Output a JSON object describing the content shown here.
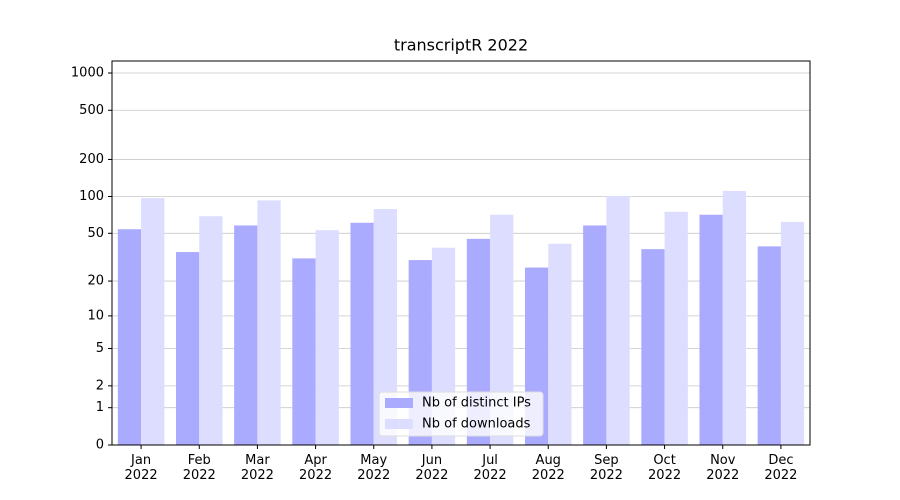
{
  "chart_data": {
    "type": "bar",
    "title": "transcriptR 2022",
    "scale": "log1p",
    "categories": [
      "Jan\n2022",
      "Feb\n2022",
      "Mar\n2022",
      "Apr\n2022",
      "May\n2022",
      "Jun\n2022",
      "Jul\n2022",
      "Aug\n2022",
      "Sep\n2022",
      "Oct\n2022",
      "Nov\n2022",
      "Dec\n2022"
    ],
    "series": [
      {
        "name": "Nb of distinct IPs",
        "color": "#aaaaff",
        "values": [
          54,
          35,
          58,
          31,
          61,
          30,
          45,
          26,
          58,
          37,
          71,
          39
        ]
      },
      {
        "name": "Nb of downloads",
        "color": "#ddddff",
        "values": [
          97,
          69,
          93,
          53,
          79,
          38,
          71,
          41,
          101,
          75,
          111,
          62
        ]
      }
    ],
    "ylim": [
      0,
      1250
    ],
    "yticks": [
      0,
      1,
      2,
      5,
      10,
      20,
      50,
      100,
      200,
      500,
      1000
    ],
    "grid": true,
    "legend": "lower center"
  }
}
